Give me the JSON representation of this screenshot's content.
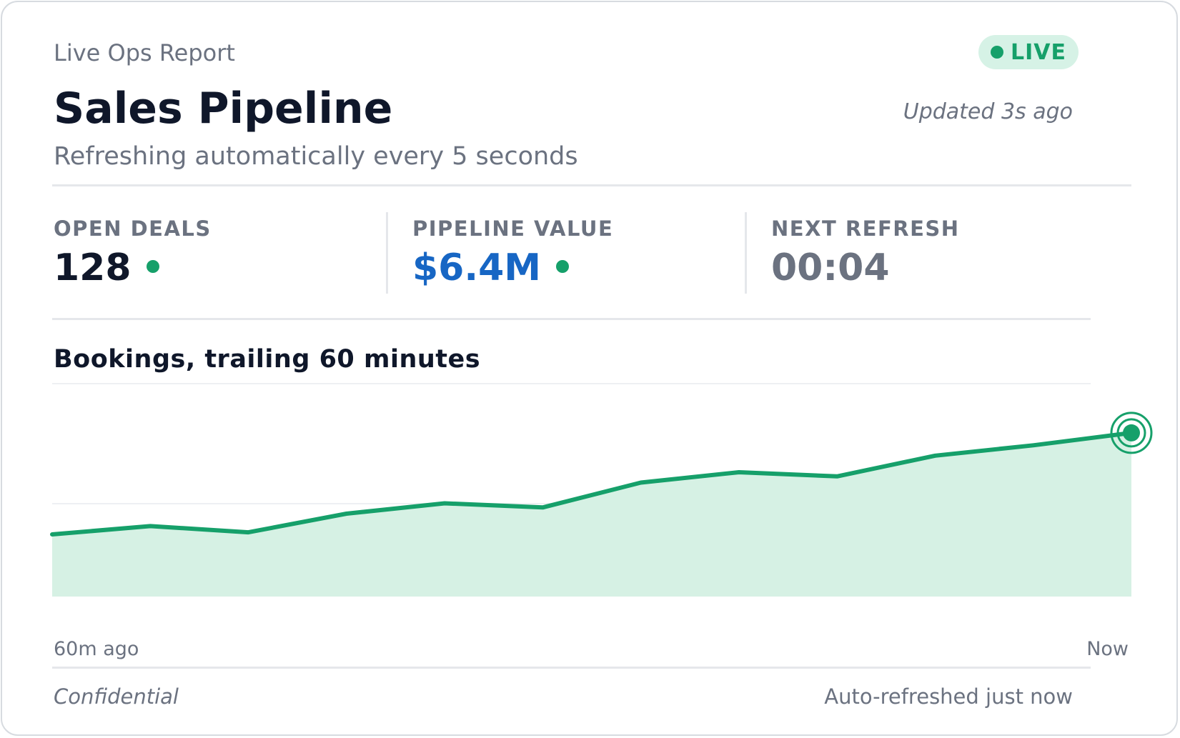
{
  "header": {
    "eyebrow": "Live Ops Report",
    "title": "Sales Pipeline",
    "subtitle": "Refreshing automatically every 5 seconds",
    "live_badge": "LIVE",
    "updated": "Updated 3s ago"
  },
  "stats": [
    {
      "label": "OPEN DEALS",
      "value": "128"
    },
    {
      "label": "PIPELINE VALUE",
      "value": "$6.4M"
    },
    {
      "label": "NEXT REFRESH",
      "value": "00:04"
    }
  ],
  "colors": {
    "accent_green": "#16a06a",
    "area_fill": "#d6f1e4",
    "pipeline_blue": "#1766c4",
    "live_badge_bg": "#d6f2e6"
  },
  "chart_data": {
    "type": "area",
    "title": "Bookings, trailing 60 minutes",
    "x_start_label": "60m ago",
    "x_end_label": "Now",
    "x": [
      0,
      5,
      10,
      15,
      20,
      25,
      30,
      35,
      40,
      45,
      50,
      55
    ],
    "values": [
      30,
      34,
      31,
      40,
      45,
      43,
      55,
      60,
      58,
      68,
      73,
      79
    ],
    "ylim": [
      0,
      100
    ],
    "grid": true,
    "highlight_last_point": true
  },
  "footer": {
    "left": "Confidential",
    "right": "Auto-refreshed just now"
  }
}
